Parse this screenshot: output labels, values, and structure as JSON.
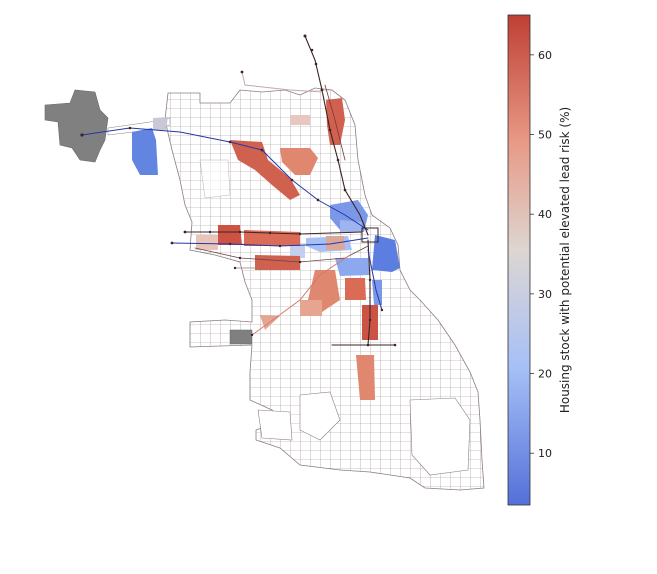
{
  "map": {
    "colorbar": {
      "label": "Housing stock with potential elevated lead risk (%)",
      "min": 3.5,
      "max": 65,
      "ticks": [
        10,
        20,
        30,
        40,
        50,
        60
      ],
      "ticks_text": [
        "10",
        "20",
        "30",
        "40",
        "50",
        "60"
      ],
      "colors": {
        "low": "#5470d8",
        "mid_low": "#a6c0f7",
        "mid": "#ddd6d2",
        "mid_high": "#e89a86",
        "high": "#bf3f34",
        "no_data": "#808080",
        "tract_outline": "#8c7d80",
        "transit_line": "#2238a8",
        "transit_stop": "#3a2424"
      }
    }
  }
}
